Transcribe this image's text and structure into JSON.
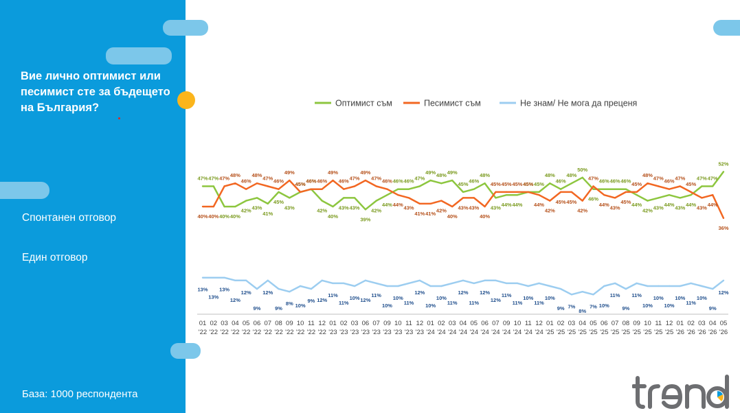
{
  "sidebar": {
    "title": "Вие лично оптимист или песимист сте за бъдещето на България?",
    "response_type": "Спонтанен отговор",
    "answer_mode": "Един отговор",
    "base": "База:  1000 респондента"
  },
  "colors": {
    "sidebar_bg": "#0b9bdc",
    "optimist": "#8dc63f",
    "pessimist": "#f26722",
    "dont_know": "#9ccdf0",
    "optimist_label": "#7a9a1e",
    "pessimist_label": "#b5501a",
    "dont_know_label": "#1f4e8c"
  },
  "logo": {
    "name": "trend-logo"
  },
  "chart_data": {
    "type": "line",
    "x": [
      "01 '22",
      "02 '22",
      "03 '22",
      "04 '22",
      "05 '22",
      "06 '22",
      "07 '22",
      "08 '22",
      "09 '22",
      "10 '22",
      "11 '22",
      "12 '22",
      "01 '23",
      "02 '23",
      "03 '23",
      "06 '23",
      "07 '23",
      "09 '23",
      "10 '23",
      "11 '23",
      "12 '23",
      "01 '24",
      "02 '24",
      "03 '24",
      "04 '24",
      "05 '24",
      "06 '24",
      "07 '24",
      "09 '24",
      "10 '24",
      "11 '24",
      "12 '24",
      "01 '25",
      "02 '25",
      "03 '25",
      "04 '25",
      "05 '25",
      "06 '25",
      "07 '25",
      "08 '25",
      "09 '25",
      "10 '25",
      "11 '25",
      "12 '25",
      "01 '26",
      "02 '26",
      "03 '26",
      "04 '26",
      "05 '26"
    ],
    "series": [
      {
        "name": "Оптимист съм",
        "values": [
          47,
          47,
          40,
          40,
          42,
          43,
          41,
          45,
          43,
          45,
          46,
          42,
          40,
          43,
          43,
          39,
          42,
          44,
          46,
          46,
          47,
          49,
          48,
          49,
          45,
          46,
          48,
          43,
          44,
          44,
          45,
          45,
          48,
          46,
          48,
          50,
          46,
          46,
          46,
          46,
          44,
          42,
          43,
          44,
          43,
          44,
          47,
          47,
          52
        ]
      },
      {
        "name": "Песимист съм",
        "values": [
          40,
          40,
          47,
          48,
          46,
          48,
          47,
          46,
          49,
          45,
          46,
          46,
          49,
          46,
          47,
          49,
          47,
          46,
          44,
          43,
          41,
          41,
          42,
          40,
          43,
          43,
          40,
          45,
          45,
          45,
          45,
          44,
          42,
          45,
          45,
          42,
          47,
          44,
          43,
          45,
          45,
          48,
          47,
          46,
          47,
          45,
          43,
          44,
          36
        ]
      },
      {
        "name": "Не знам/ Не мога да преценя",
        "values": [
          13,
          13,
          13,
          12,
          12,
          9,
          12,
          9,
          8,
          10,
          9,
          12,
          11,
          11,
          10,
          12,
          11,
          10,
          10,
          11,
          12,
          10,
          10,
          11,
          12,
          11,
          12,
          12,
          11,
          11,
          10,
          11,
          10,
          9,
          7,
          8,
          7,
          10,
          11,
          9,
          11,
          10,
          10,
          10,
          10,
          11,
          10,
          9,
          12
        ]
      }
    ],
    "legend": "top",
    "grid": false,
    "ylim": [
      0,
      60
    ]
  }
}
